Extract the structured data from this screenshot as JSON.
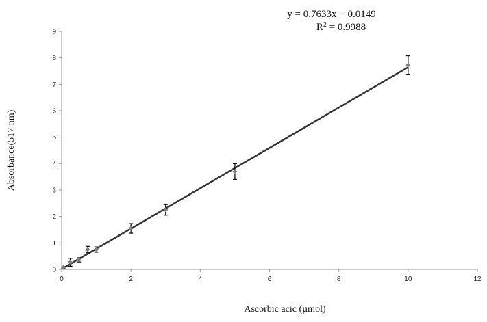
{
  "chart_data": {
    "type": "scatter",
    "title": "",
    "xlabel": "Ascorbic acic (µmol)",
    "ylabel": "Absorbance(517 nm)",
    "xlim": [
      0,
      12
    ],
    "ylim": [
      0,
      9
    ],
    "xticks": [
      "0",
      "2",
      "4",
      "6",
      "8",
      "10",
      "12"
    ],
    "yticks": [
      "0",
      "1",
      "2",
      "3",
      "4",
      "5",
      "6",
      "7",
      "8",
      "9"
    ],
    "grid": false,
    "legend": "none",
    "series": [
      {
        "x": [
          0.05,
          0.25,
          0.5,
          0.75,
          1,
          2,
          3,
          5,
          10
        ],
        "y": [
          0.07,
          0.27,
          0.36,
          0.75,
          0.75,
          1.55,
          2.25,
          3.7,
          7.73
        ],
        "err": [
          0.03,
          0.15,
          0.08,
          0.12,
          0.1,
          0.18,
          0.2,
          0.3,
          0.35
        ],
        "color": "#808080"
      }
    ],
    "trendline": {
      "type": "linear",
      "slope": 0.7633,
      "intercept": 0.0149,
      "x_range": [
        0,
        10
      ],
      "color": "#333333",
      "equation": "y = 0.7633x + 0.0149",
      "r2_label": "R",
      "r2_sup": "2",
      "r2_value": " = 0.9988"
    }
  }
}
